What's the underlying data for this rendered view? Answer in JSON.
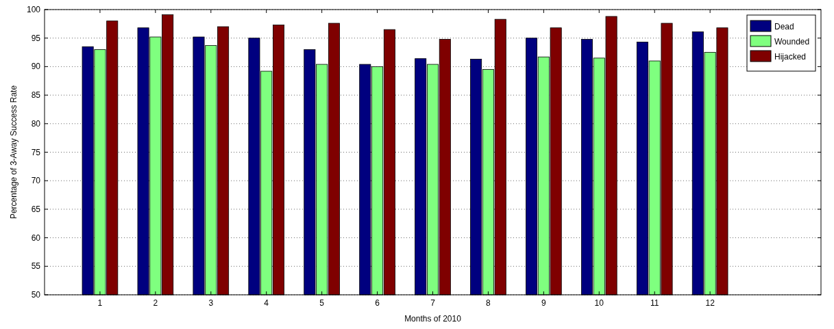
{
  "chart_data": {
    "type": "bar",
    "xlabel": "Months of 2010",
    "ylabel": "Percentage of 3-Away Success Rate",
    "x": [
      1,
      2,
      3,
      4,
      5,
      6,
      7,
      8,
      9,
      10,
      11,
      12
    ],
    "xlim": [
      0,
      14
    ],
    "xticks": [
      1,
      2,
      3,
      4,
      5,
      6,
      7,
      8,
      9,
      10,
      11,
      12
    ],
    "ylim": [
      50,
      100
    ],
    "yticks": [
      50,
      55,
      60,
      65,
      70,
      75,
      80,
      85,
      90,
      95,
      100
    ],
    "grid": "y",
    "legend": "top right",
    "series": [
      {
        "name": "Dead",
        "color": "#00007f",
        "values": [
          93.5,
          96.8,
          95.2,
          95,
          93,
          90.4,
          91.4,
          91.3,
          95,
          94.8,
          94.3,
          96.1
        ]
      },
      {
        "name": "Wounded",
        "color": "#7fff7f",
        "values": [
          93,
          95.2,
          93.7,
          89.2,
          90.4,
          90,
          90.4,
          89.5,
          91.7,
          91.5,
          91,
          92.5
        ]
      },
      {
        "name": "Hijacked",
        "color": "#7f0000",
        "values": [
          98,
          99.1,
          97,
          97.3,
          97.6,
          96.5,
          94.8,
          98.3,
          96.8,
          98.8,
          97.6,
          96.8
        ]
      }
    ]
  }
}
